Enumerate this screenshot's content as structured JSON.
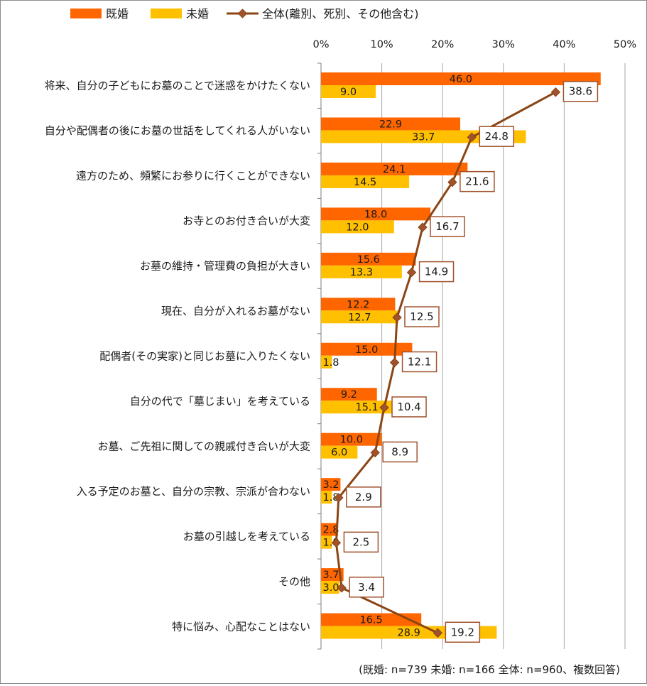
{
  "chart_data": {
    "type": "bar",
    "orientation": "horizontal",
    "categories": [
      "将来、自分の子どもにお墓のことで迷惑をかけたくない",
      "自分や配偶者の後にお墓の世話をしてくれる人がいない",
      "遠方のため、頻繁にお参りに行くことができない",
      "お寺とのお付き合いが大変",
      "お墓の維持・管理費の負担が大きい",
      "現在、自分が入れるお墓がない",
      "配偶者(その実家)と同じお墓に入りたくない",
      "自分の代で「墓じまい」を考えている",
      "お墓、ご先祖に関しての親戚付き合いが大変",
      "入る予定のお墓と、自分の宗教、宗派が合わない",
      "お墓の引越しを考えている",
      "その他",
      "特に悩み、心配なことはない"
    ],
    "series": [
      {
        "name": "既婚",
        "type": "bar",
        "color": "#FF6600",
        "values": [
          46.0,
          22.9,
          24.1,
          18.0,
          15.6,
          12.2,
          15.0,
          9.2,
          10.0,
          3.2,
          2.8,
          3.7,
          16.5
        ],
        "labels": [
          "46.0",
          "22.9",
          "24.1",
          "18.0",
          "15.6",
          "12.2",
          "15.0",
          "9.2",
          "10.0",
          "3.2",
          "2.8",
          "3.7",
          "16.5"
        ]
      },
      {
        "name": "未婚",
        "type": "bar",
        "color": "#FFC000",
        "values": [
          9.0,
          33.7,
          14.5,
          12.0,
          13.3,
          12.7,
          1.8,
          15.1,
          6.0,
          1.8,
          1.8,
          3.0,
          28.9
        ],
        "labels": [
          "9.0",
          "33.7",
          "14.5",
          "12.0",
          "13.3",
          "12.7",
          "1.8",
          "15.1",
          "6.0",
          "1.8",
          "1.8",
          "3.0",
          "28.9"
        ]
      },
      {
        "name": "全体(離別、死別、その他含む)",
        "type": "line",
        "color": "#8B4513",
        "marker_color": "#A0522D",
        "values": [
          38.6,
          24.8,
          21.6,
          16.7,
          14.9,
          12.5,
          12.1,
          10.4,
          8.9,
          2.9,
          2.5,
          3.4,
          19.2
        ],
        "labels": [
          "38.6",
          "24.8",
          "21.6",
          "16.7",
          "14.9",
          "12.5",
          "12.1",
          "10.4",
          "8.9",
          "2.9",
          "2.5",
          "3.4",
          "19.2"
        ]
      }
    ],
    "x_ticks": [
      "0%",
      "10%",
      "20%",
      "30%",
      "40%",
      "50%"
    ],
    "xlim": [
      0,
      50
    ],
    "grid": true,
    "legend": "top-left",
    "footnote": "(既婚: n=739 未婚: n=166 全体: n=960、複数回答)"
  }
}
